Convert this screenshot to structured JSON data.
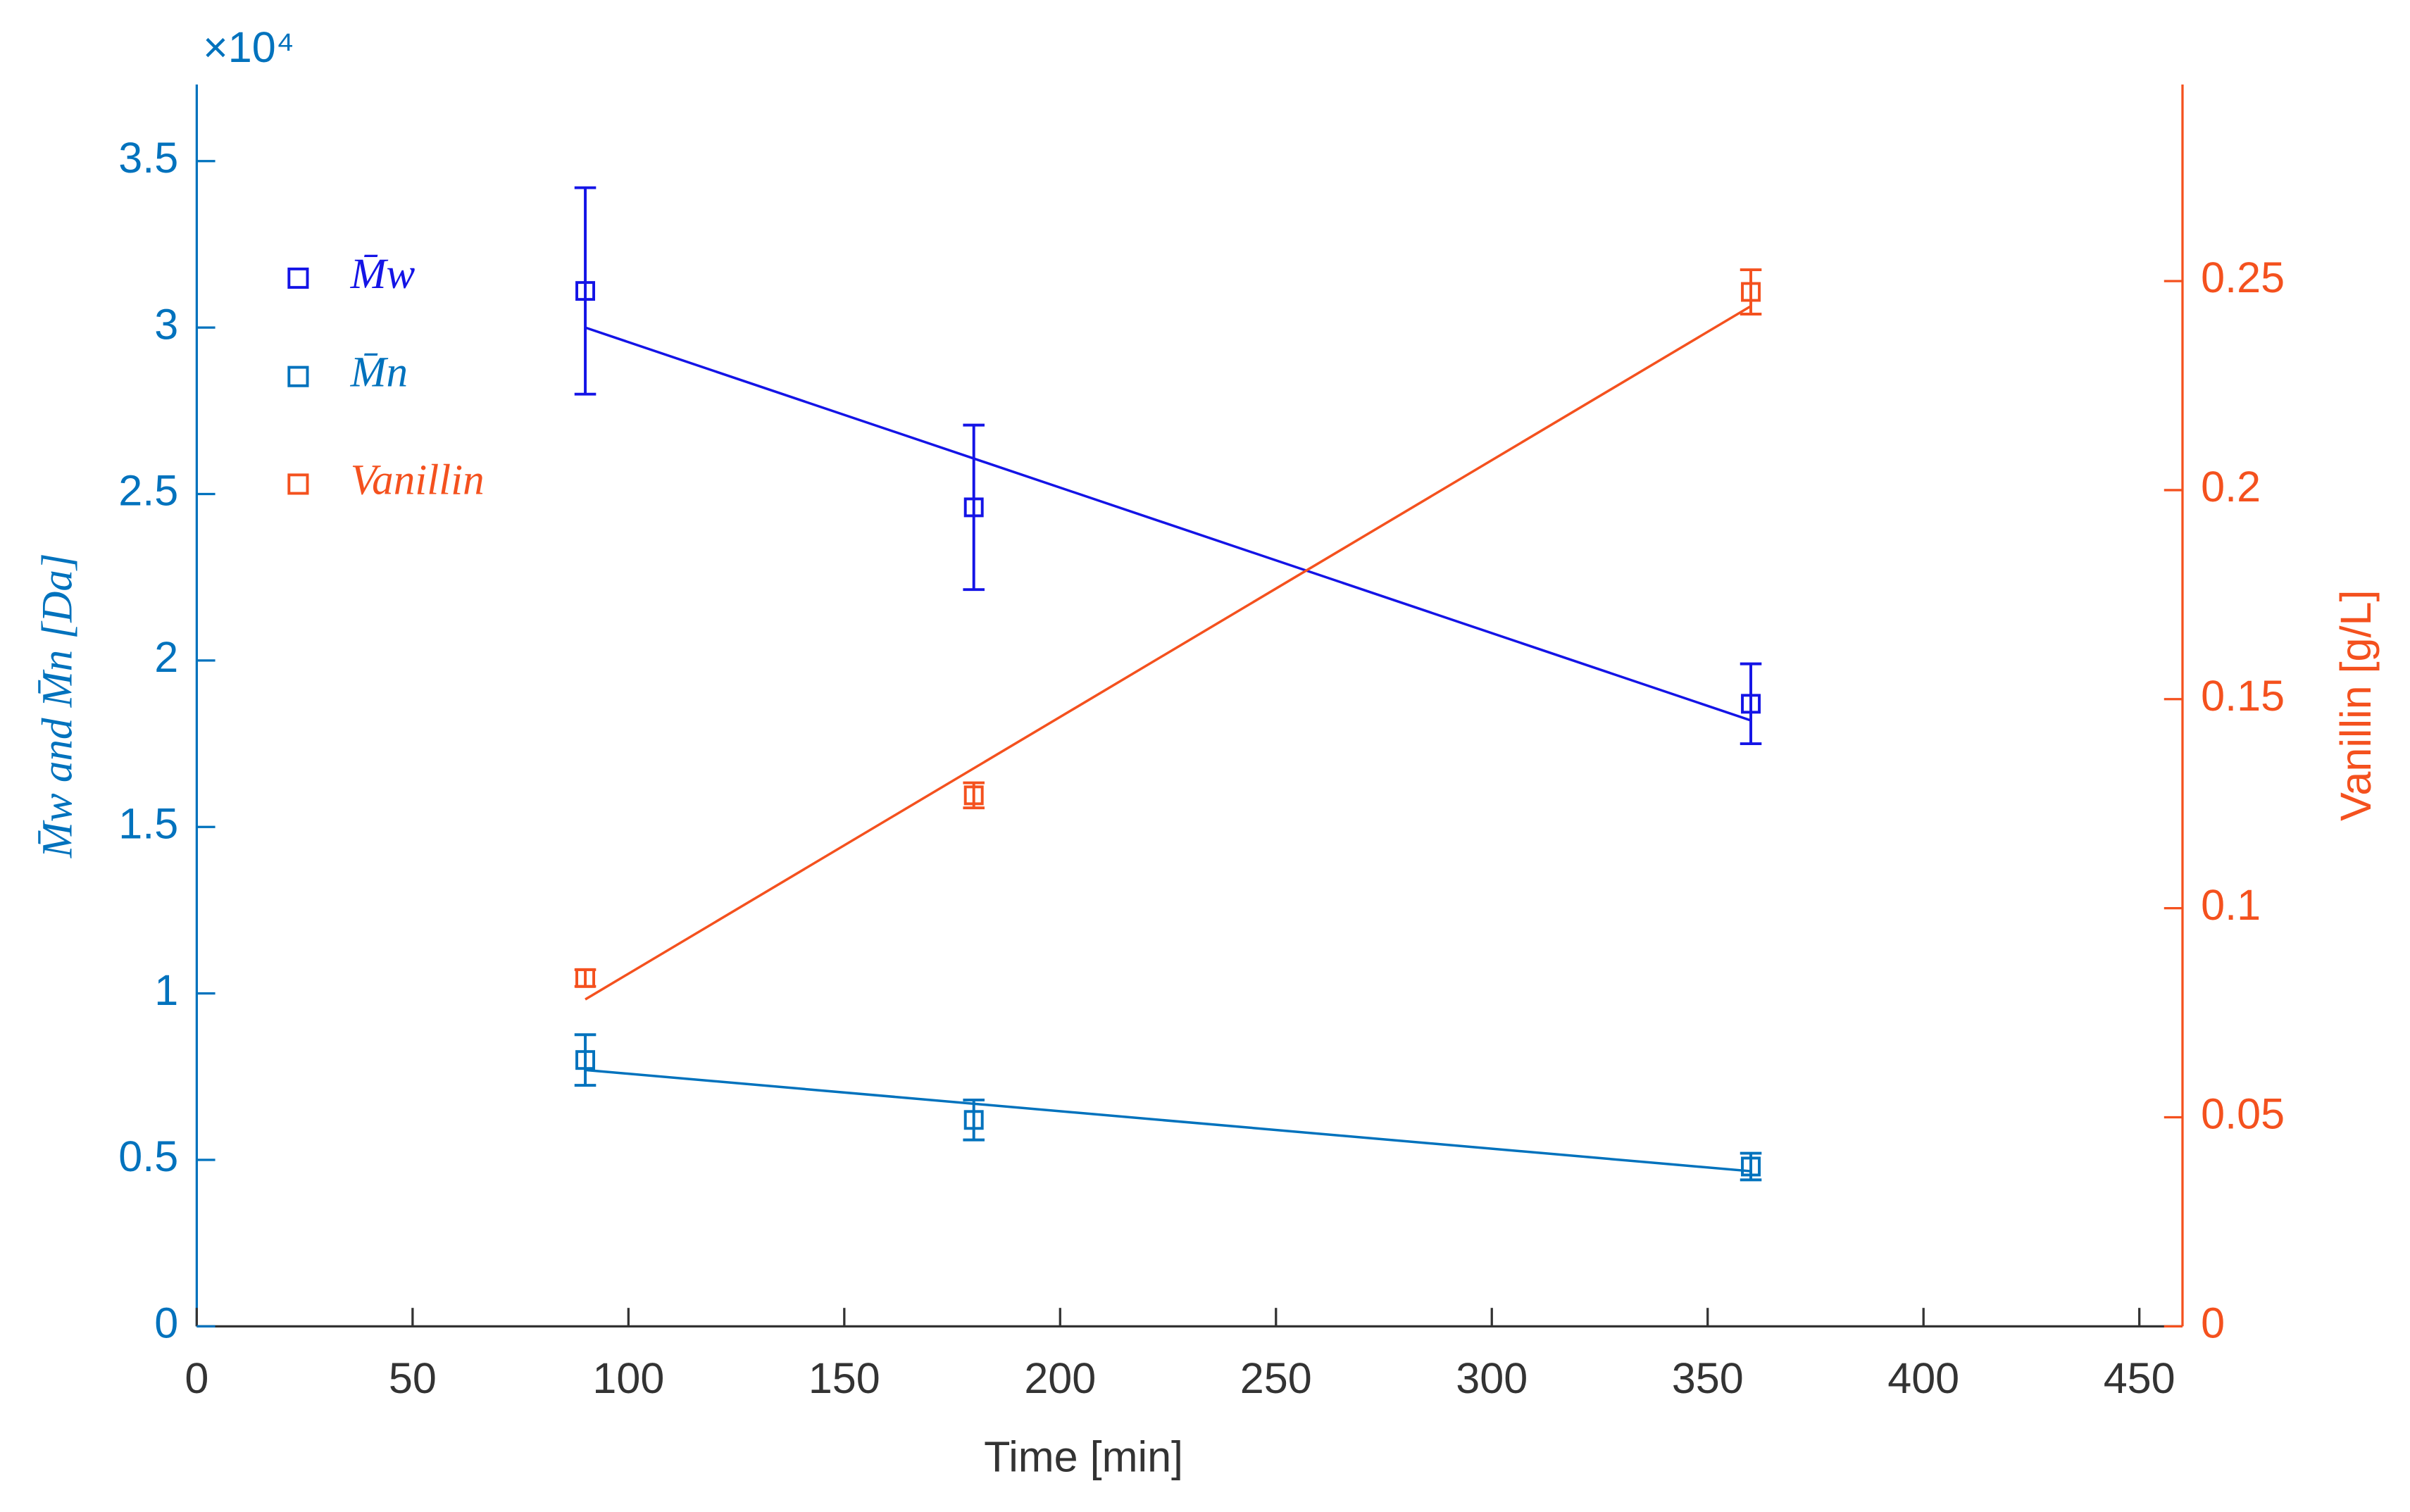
{
  "chart_data": {
    "type": "scatter",
    "xlabel": "Time [min]",
    "ylabel": "M̄w and M̄n [Da]",
    "y2label": "Vanillin [g/L]",
    "y_exponent": "×10⁴",
    "xlim": [
      0,
      460
    ],
    "xticks": [
      0,
      50,
      100,
      150,
      200,
      250,
      300,
      350,
      400,
      450
    ],
    "ylim": [
      0,
      3.73
    ],
    "yticks": [
      0,
      0.5,
      1,
      1.5,
      2,
      2.5,
      3,
      3.5
    ],
    "y2lim": [
      0,
      0.297
    ],
    "y2ticks": [
      0,
      0.05,
      0.1,
      0.15,
      0.2,
      0.25
    ],
    "legend": "upper left",
    "series": [
      {
        "name": "M̄w",
        "color": "#1414e6",
        "axis": "y",
        "x": [
          90,
          180,
          360
        ],
        "values": [
          3.11,
          2.46,
          1.87
        ],
        "errors": [
          0.31,
          0.247,
          0.12
        ]
      },
      {
        "name": "M̄n",
        "color": "#0072bd",
        "axis": "y",
        "x": [
          90,
          180,
          360
        ],
        "values": [
          0.8,
          0.62,
          0.48
        ],
        "errors": [
          0.076,
          0.06,
          0.04
        ]
      },
      {
        "name": "Vanillin",
        "color": "#f4511e",
        "axis": "y2",
        "x": [
          90,
          180,
          360
        ],
        "values": [
          0.0833,
          0.127,
          0.2474
        ],
        "errors": [
          0.002,
          0.003,
          0.0053
        ]
      }
    ],
    "fits": [
      {
        "color": "#1414e6",
        "axis": "y",
        "x": [
          90,
          360
        ],
        "values": [
          3.0,
          1.82
        ]
      },
      {
        "color": "#0072bd",
        "axis": "y",
        "x": [
          90,
          360
        ],
        "values": [
          0.77,
          0.466
        ]
      },
      {
        "color": "#f4511e",
        "axis": "y2",
        "x": [
          90,
          360
        ],
        "values": [
          0.0782,
          0.244
        ]
      }
    ]
  }
}
